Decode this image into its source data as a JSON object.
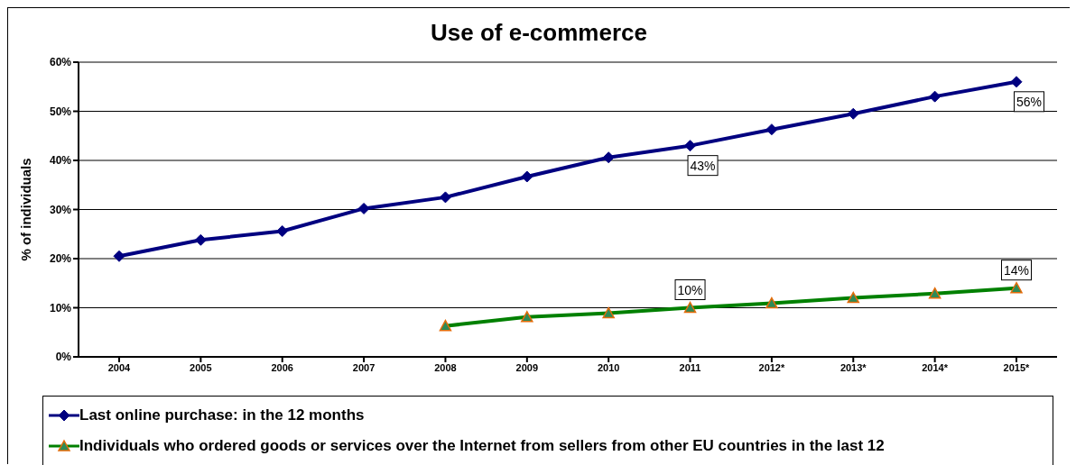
{
  "chart_data": {
    "type": "line",
    "title": "Use of e-commerce",
    "ylabel": "% of individuals",
    "categories": [
      "2004",
      "2005",
      "2006",
      "2007",
      "2008",
      "2009",
      "2010",
      "2011",
      "2012*",
      "2013*",
      "2014*",
      "2015*"
    ],
    "ylim": [
      0,
      60
    ],
    "yticks": [
      {
        "value": 0,
        "label": "0%"
      },
      {
        "value": 10,
        "label": "10%"
      },
      {
        "value": 20,
        "label": "20%"
      },
      {
        "value": 30,
        "label": "30%"
      },
      {
        "value": 40,
        "label": "40%"
      },
      {
        "value": 50,
        "label": "50%"
      },
      {
        "value": 60,
        "label": "60%"
      }
    ],
    "grid": "y",
    "legend": "bottom",
    "series": [
      {
        "name": "Last online purchase: in the 12 months",
        "color": "#000080",
        "marker": "diamond",
        "values": [
          20.5,
          23.8,
          25.6,
          30.2,
          32.5,
          36.7,
          40.6,
          43,
          46.3,
          49.5,
          53,
          56
        ],
        "value_labels": [
          null,
          null,
          null,
          null,
          null,
          null,
          null,
          "43%",
          null,
          null,
          null,
          "56%"
        ]
      },
      {
        "name": "Individuals who ordered goods or services over the Internet from sellers from other EU countries in the last 12",
        "color": "#008000",
        "marker": "triangle",
        "values": [
          null,
          null,
          null,
          null,
          6.3,
          8.1,
          8.9,
          10,
          10.9,
          12,
          12.9,
          14
        ],
        "value_labels": [
          null,
          null,
          null,
          null,
          null,
          null,
          null,
          "10%",
          null,
          null,
          null,
          "14%"
        ]
      }
    ]
  }
}
